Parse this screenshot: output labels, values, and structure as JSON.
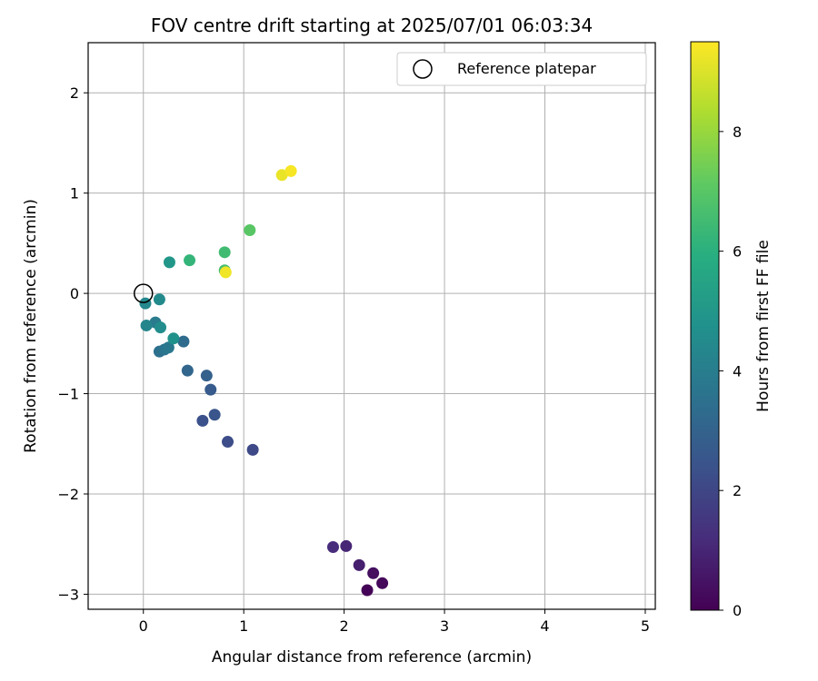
{
  "chart_data": {
    "type": "scatter",
    "title": "FOV centre drift starting at 2025/07/01 06:03:34",
    "xlabel": "Angular distance from reference (arcmin)",
    "ylabel": "Rotation from reference (arcmin)",
    "xlim": [
      -0.55,
      5.1
    ],
    "ylim": [
      -3.15,
      2.5
    ],
    "xticks": [
      0,
      1,
      2,
      3,
      4,
      5
    ],
    "yticks": [
      -3,
      -2,
      -1,
      0,
      1,
      2
    ],
    "grid": true,
    "legend": {
      "position": "top-right",
      "entries": [
        "Reference platepar"
      ]
    },
    "reference_point": {
      "x": 0,
      "y": 0
    },
    "colorbar": {
      "label": "Hours from first FF file",
      "colormap": "viridis",
      "range": [
        0,
        9.5
      ],
      "ticks": [
        0,
        2,
        4,
        6,
        8
      ]
    },
    "points": [
      {
        "x": 2.23,
        "y": -2.96,
        "hours": 0.05
      },
      {
        "x": 2.38,
        "y": -2.89,
        "hours": 0.2
      },
      {
        "x": 2.29,
        "y": -2.79,
        "hours": 0.35
      },
      {
        "x": 2.15,
        "y": -2.71,
        "hours": 0.8
      },
      {
        "x": 2.02,
        "y": -2.52,
        "hours": 1.0
      },
      {
        "x": 1.89,
        "y": -2.53,
        "hours": 1.2
      },
      {
        "x": 1.09,
        "y": -1.56,
        "hours": 2.1
      },
      {
        "x": 0.84,
        "y": -1.48,
        "hours": 2.2
      },
      {
        "x": 0.59,
        "y": -1.27,
        "hours": 2.35
      },
      {
        "x": 0.71,
        "y": -1.21,
        "hours": 2.5
      },
      {
        "x": 0.67,
        "y": -0.96,
        "hours": 2.7
      },
      {
        "x": 0.63,
        "y": -0.82,
        "hours": 2.9
      },
      {
        "x": 0.44,
        "y": -0.77,
        "hours": 3.1
      },
      {
        "x": 0.4,
        "y": -0.48,
        "hours": 3.3
      },
      {
        "x": 0.16,
        "y": -0.58,
        "hours": 3.5
      },
      {
        "x": 0.21,
        "y": -0.56,
        "hours": 3.65
      },
      {
        "x": 0.25,
        "y": -0.54,
        "hours": 3.8
      },
      {
        "x": 0.12,
        "y": -0.29,
        "hours": 3.9
      },
      {
        "x": 0.03,
        "y": -0.32,
        "hours": 4.3
      },
      {
        "x": 0.02,
        "y": -0.1,
        "hours": 4.4
      },
      {
        "x": 0.16,
        "y": -0.06,
        "hours": 4.5
      },
      {
        "x": 0.17,
        "y": -0.34,
        "hours": 4.6
      },
      {
        "x": 0.3,
        "y": -0.45,
        "hours": 4.8
      },
      {
        "x": 0.26,
        "y": 0.31,
        "hours": 5.0
      },
      {
        "x": 0.46,
        "y": 0.33,
        "hours": 6.2
      },
      {
        "x": 0.81,
        "y": 0.41,
        "hours": 6.5
      },
      {
        "x": 0.81,
        "y": 0.23,
        "hours": 6.6
      },
      {
        "x": 1.06,
        "y": 0.63,
        "hours": 7.0
      },
      {
        "x": 0.82,
        "y": 0.21,
        "hours": 9.3
      },
      {
        "x": 1.38,
        "y": 1.18,
        "hours": 9.2
      },
      {
        "x": 1.47,
        "y": 1.22,
        "hours": 9.4
      }
    ]
  }
}
